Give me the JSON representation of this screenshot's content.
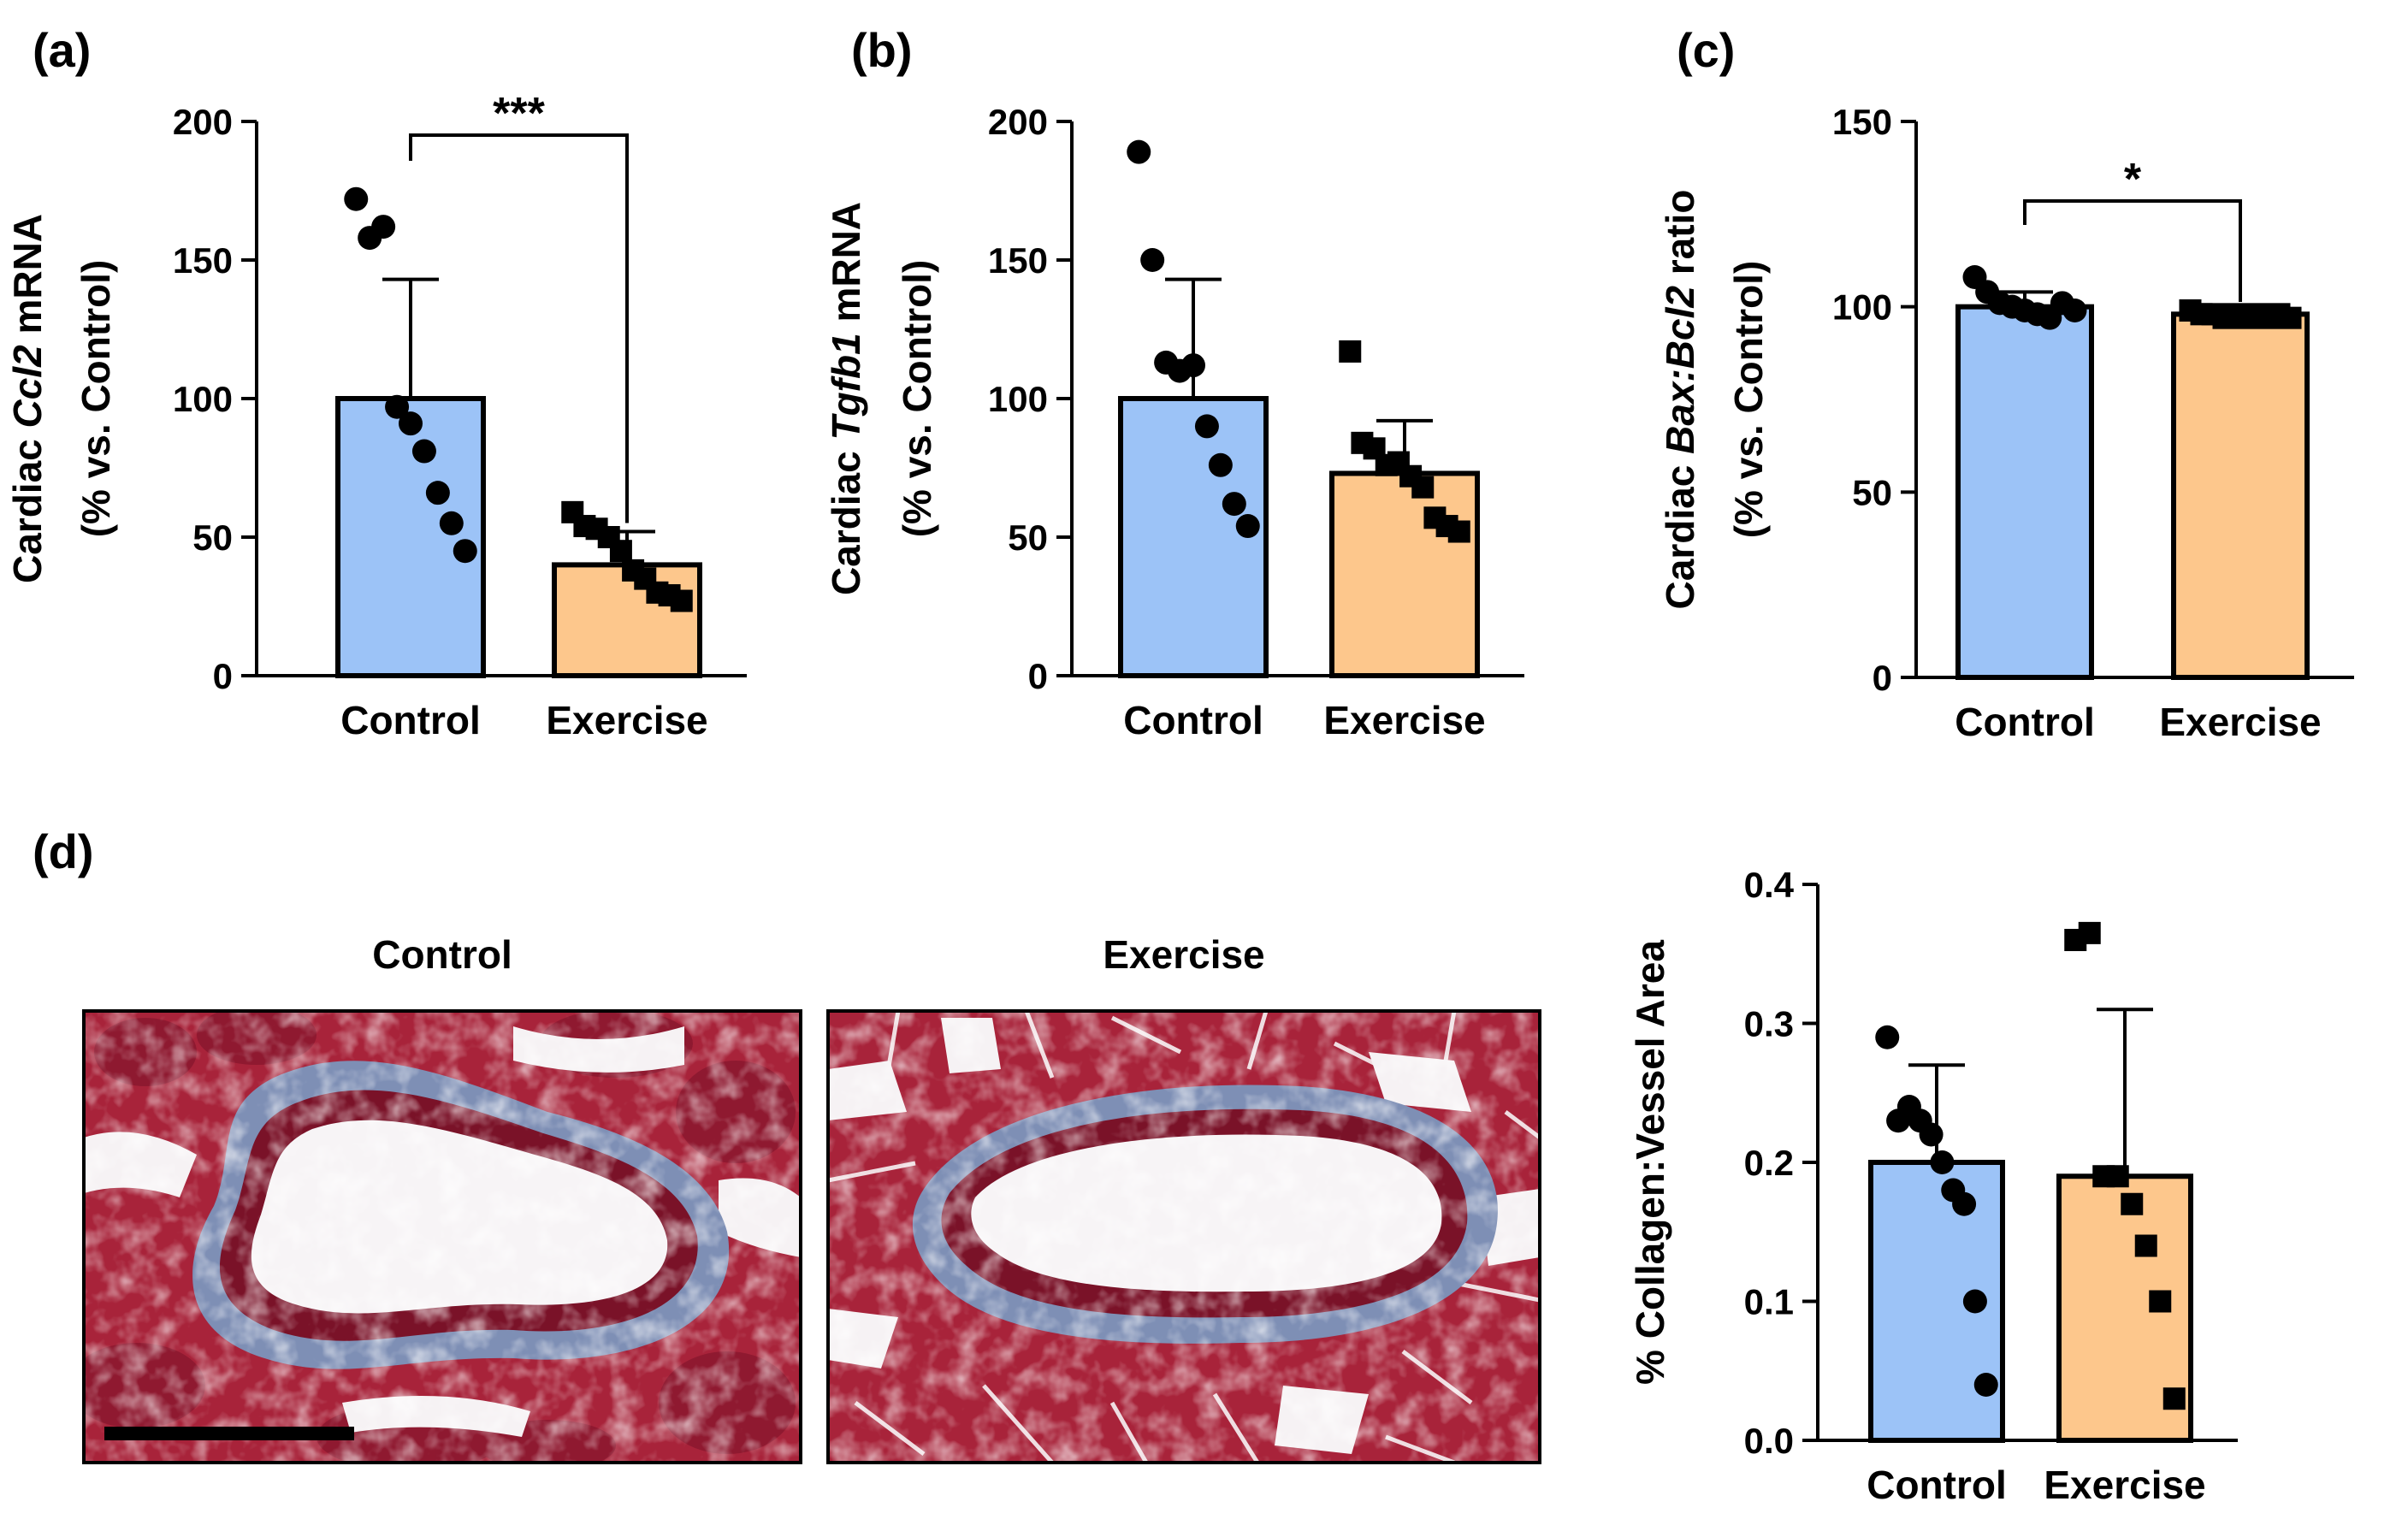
{
  "figure": {
    "panel_labels": [
      "(a)",
      "(b)",
      "(c)",
      "(d)"
    ],
    "histology": {
      "panel_label": "(d)",
      "control_title": "Control",
      "exercise_title": "Exercise"
    },
    "colors": {
      "control_fill": "#9CC3F7",
      "exercise_fill": "#FDC78C",
      "tissue_red": "#A8233A",
      "tissue_dark": "#7A1228",
      "collagen_blue": "#7E8FB5",
      "lumen": "#F7F4F6"
    }
  },
  "chart_data": [
    {
      "type": "bar",
      "panel": "(a)",
      "categories": [
        "Control",
        "Exercise"
      ],
      "values": [
        100,
        40
      ],
      "errors": [
        43,
        12
      ],
      "ylim": [
        0,
        200
      ],
      "yticks": [
        0,
        50,
        100,
        150,
        200
      ],
      "ylabel_prefix": "Cardiac ",
      "ylabel_italic": "Ccl2",
      "ylabel_suffix": " mRNA",
      "ylabel_line2": "(% vs. Control)",
      "significance": "***",
      "points": [
        [
          172,
          158,
          162,
          97,
          91,
          81,
          66,
          55,
          45
        ],
        [
          59,
          54,
          53,
          50,
          45,
          38,
          35,
          30,
          29,
          27
        ]
      ]
    },
    {
      "type": "bar",
      "panel": "(b)",
      "categories": [
        "Control",
        "Exercise"
      ],
      "values": [
        100,
        73
      ],
      "errors": [
        43,
        19
      ],
      "ylim": [
        0,
        200
      ],
      "yticks": [
        0,
        50,
        100,
        150,
        200
      ],
      "ylabel_prefix": "Cardiac ",
      "ylabel_italic": "Tgfb1",
      "ylabel_suffix": " mRNA",
      "ylabel_line2": "(% vs. Control)",
      "significance": "",
      "points": [
        [
          189,
          150,
          113,
          110,
          112,
          90,
          76,
          62,
          54
        ],
        [
          117,
          84,
          82,
          76,
          77,
          72,
          68,
          57,
          54,
          52
        ]
      ]
    },
    {
      "type": "bar",
      "panel": "(c)",
      "categories": [
        "Control",
        "Exercise"
      ],
      "values": [
        100,
        98
      ],
      "errors": [
        4,
        1
      ],
      "ylim": [
        0,
        150
      ],
      "yticks": [
        0,
        50,
        100,
        150
      ],
      "ylabel_prefix": "Cardiac ",
      "ylabel_italic": "Bax:Bcl2",
      "ylabel_suffix": " ratio",
      "ylabel_line2": "(% vs. Control)",
      "significance": "*",
      "points": [
        [
          108,
          104,
          101,
          100,
          99,
          98,
          97,
          101,
          99
        ],
        [
          99,
          98,
          98,
          97,
          98,
          97,
          98,
          97,
          98,
          97
        ]
      ]
    },
    {
      "type": "bar",
      "panel": "(d)",
      "categories": [
        "Control",
        "Exercise"
      ],
      "values": [
        0.2,
        0.19
      ],
      "errors": [
        0.07,
        0.12
      ],
      "ylim": [
        0,
        0.4
      ],
      "yticks": [
        "0.0",
        "0.1",
        "0.2",
        "0.3",
        "0.4"
      ],
      "ylabel_prefix": "% Collagen:Vessel Area",
      "ylabel_italic": "",
      "ylabel_suffix": "",
      "ylabel_line2": "",
      "significance": "",
      "points": [
        [
          0.29,
          0.23,
          0.24,
          0.23,
          0.22,
          0.2,
          0.18,
          0.17,
          0.1,
          0.04
        ],
        [
          0.36,
          0.365,
          0.19,
          0.19,
          0.17,
          0.14,
          0.1,
          0.03
        ]
      ]
    }
  ]
}
